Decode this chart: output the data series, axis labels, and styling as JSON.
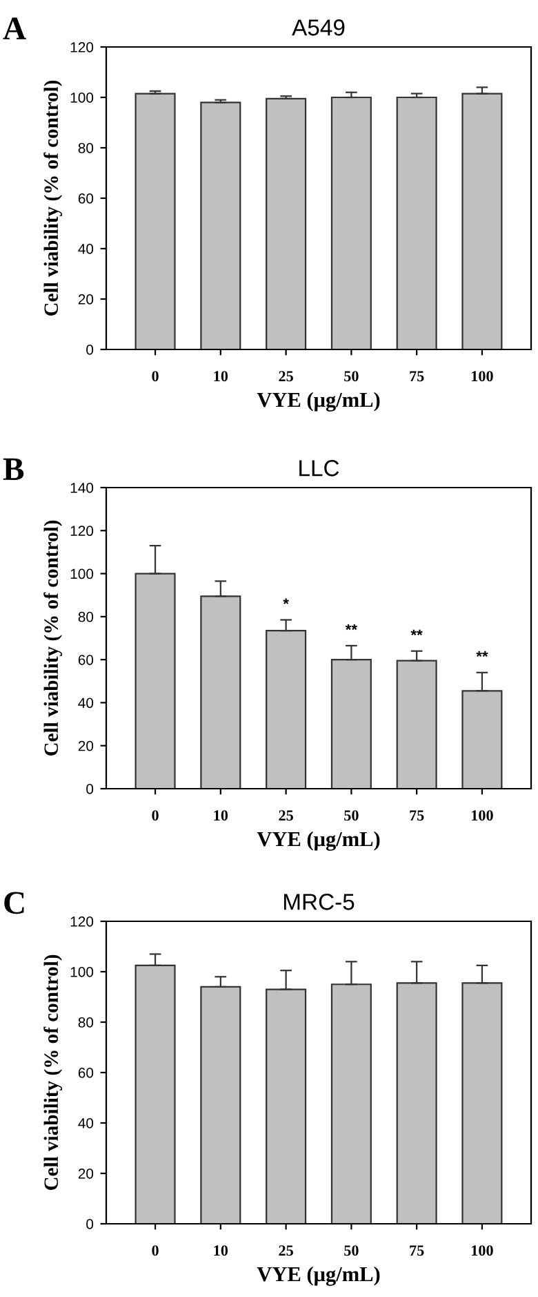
{
  "chart_data": [
    {
      "type": "bar",
      "title": "A549",
      "xlabel": "VYE (μg/mL)",
      "ylabel": "Cell viability (% of control)",
      "annotations": [
        "A"
      ],
      "categories": [
        "0",
        "10",
        "25",
        "50",
        "75",
        "100"
      ],
      "values": [
        101.5,
        98,
        99.5,
        100,
        100,
        101.5
      ],
      "errors": [
        [
          101.5,
          102.5
        ],
        [
          98,
          99
        ],
        [
          99.5,
          100.5
        ],
        [
          100,
          102
        ],
        [
          100,
          101.5
        ],
        [
          101.5,
          104
        ]
      ],
      "color": "#c0c0c0",
      "ylim": [
        0,
        120
      ],
      "yticks": [
        0,
        20,
        40,
        60,
        80,
        100,
        120
      ],
      "grid": false,
      "legend": false
    },
    {
      "type": "bar",
      "title": "LLC",
      "xlabel": "VYE (μg/mL)",
      "ylabel": "Cell viability (% of control)",
      "annotations": [
        "B",
        {
          "text": "*",
          "x": "25",
          "y": 78.5
        },
        {
          "text": "**",
          "x": "50",
          "y": 66.5
        },
        {
          "text": "**",
          "x": "75",
          "y": 64
        },
        {
          "text": "**",
          "x": "100",
          "y": 54
        }
      ],
      "categories": [
        "0",
        "10",
        "25",
        "50",
        "75",
        "100"
      ],
      "values": [
        100,
        89.5,
        73.5,
        60,
        59.5,
        45.5
      ],
      "errors": [
        [
          100,
          113
        ],
        [
          89.5,
          96.5
        ],
        [
          73.5,
          78.5
        ],
        [
          60,
          66.5
        ],
        [
          59.5,
          64
        ],
        [
          45.5,
          54
        ]
      ],
      "color": "#c0c0c0",
      "ylim": [
        0,
        140
      ],
      "yticks": [
        0,
        20,
        40,
        60,
        80,
        100,
        120,
        140
      ],
      "grid": false,
      "legend": false
    },
    {
      "type": "bar",
      "title": "MRC-5",
      "xlabel": "VYE (μg/mL)",
      "ylabel": "Cell viability (% of control)",
      "annotations": [
        "C"
      ],
      "categories": [
        "0",
        "10",
        "25",
        "50",
        "75",
        "100"
      ],
      "values": [
        102.5,
        94,
        93,
        95,
        95.5,
        95.5
      ],
      "errors": [
        [
          102.5,
          107
        ],
        [
          94,
          98
        ],
        [
          93,
          100.5
        ],
        [
          95,
          104
        ],
        [
          95.5,
          104
        ],
        [
          95.5,
          102.5
        ]
      ],
      "color": "#c0c0c0",
      "ylim": [
        0,
        120
      ],
      "yticks": [
        0,
        20,
        40,
        60,
        80,
        100,
        120
      ],
      "grid": false,
      "legend": false
    }
  ]
}
